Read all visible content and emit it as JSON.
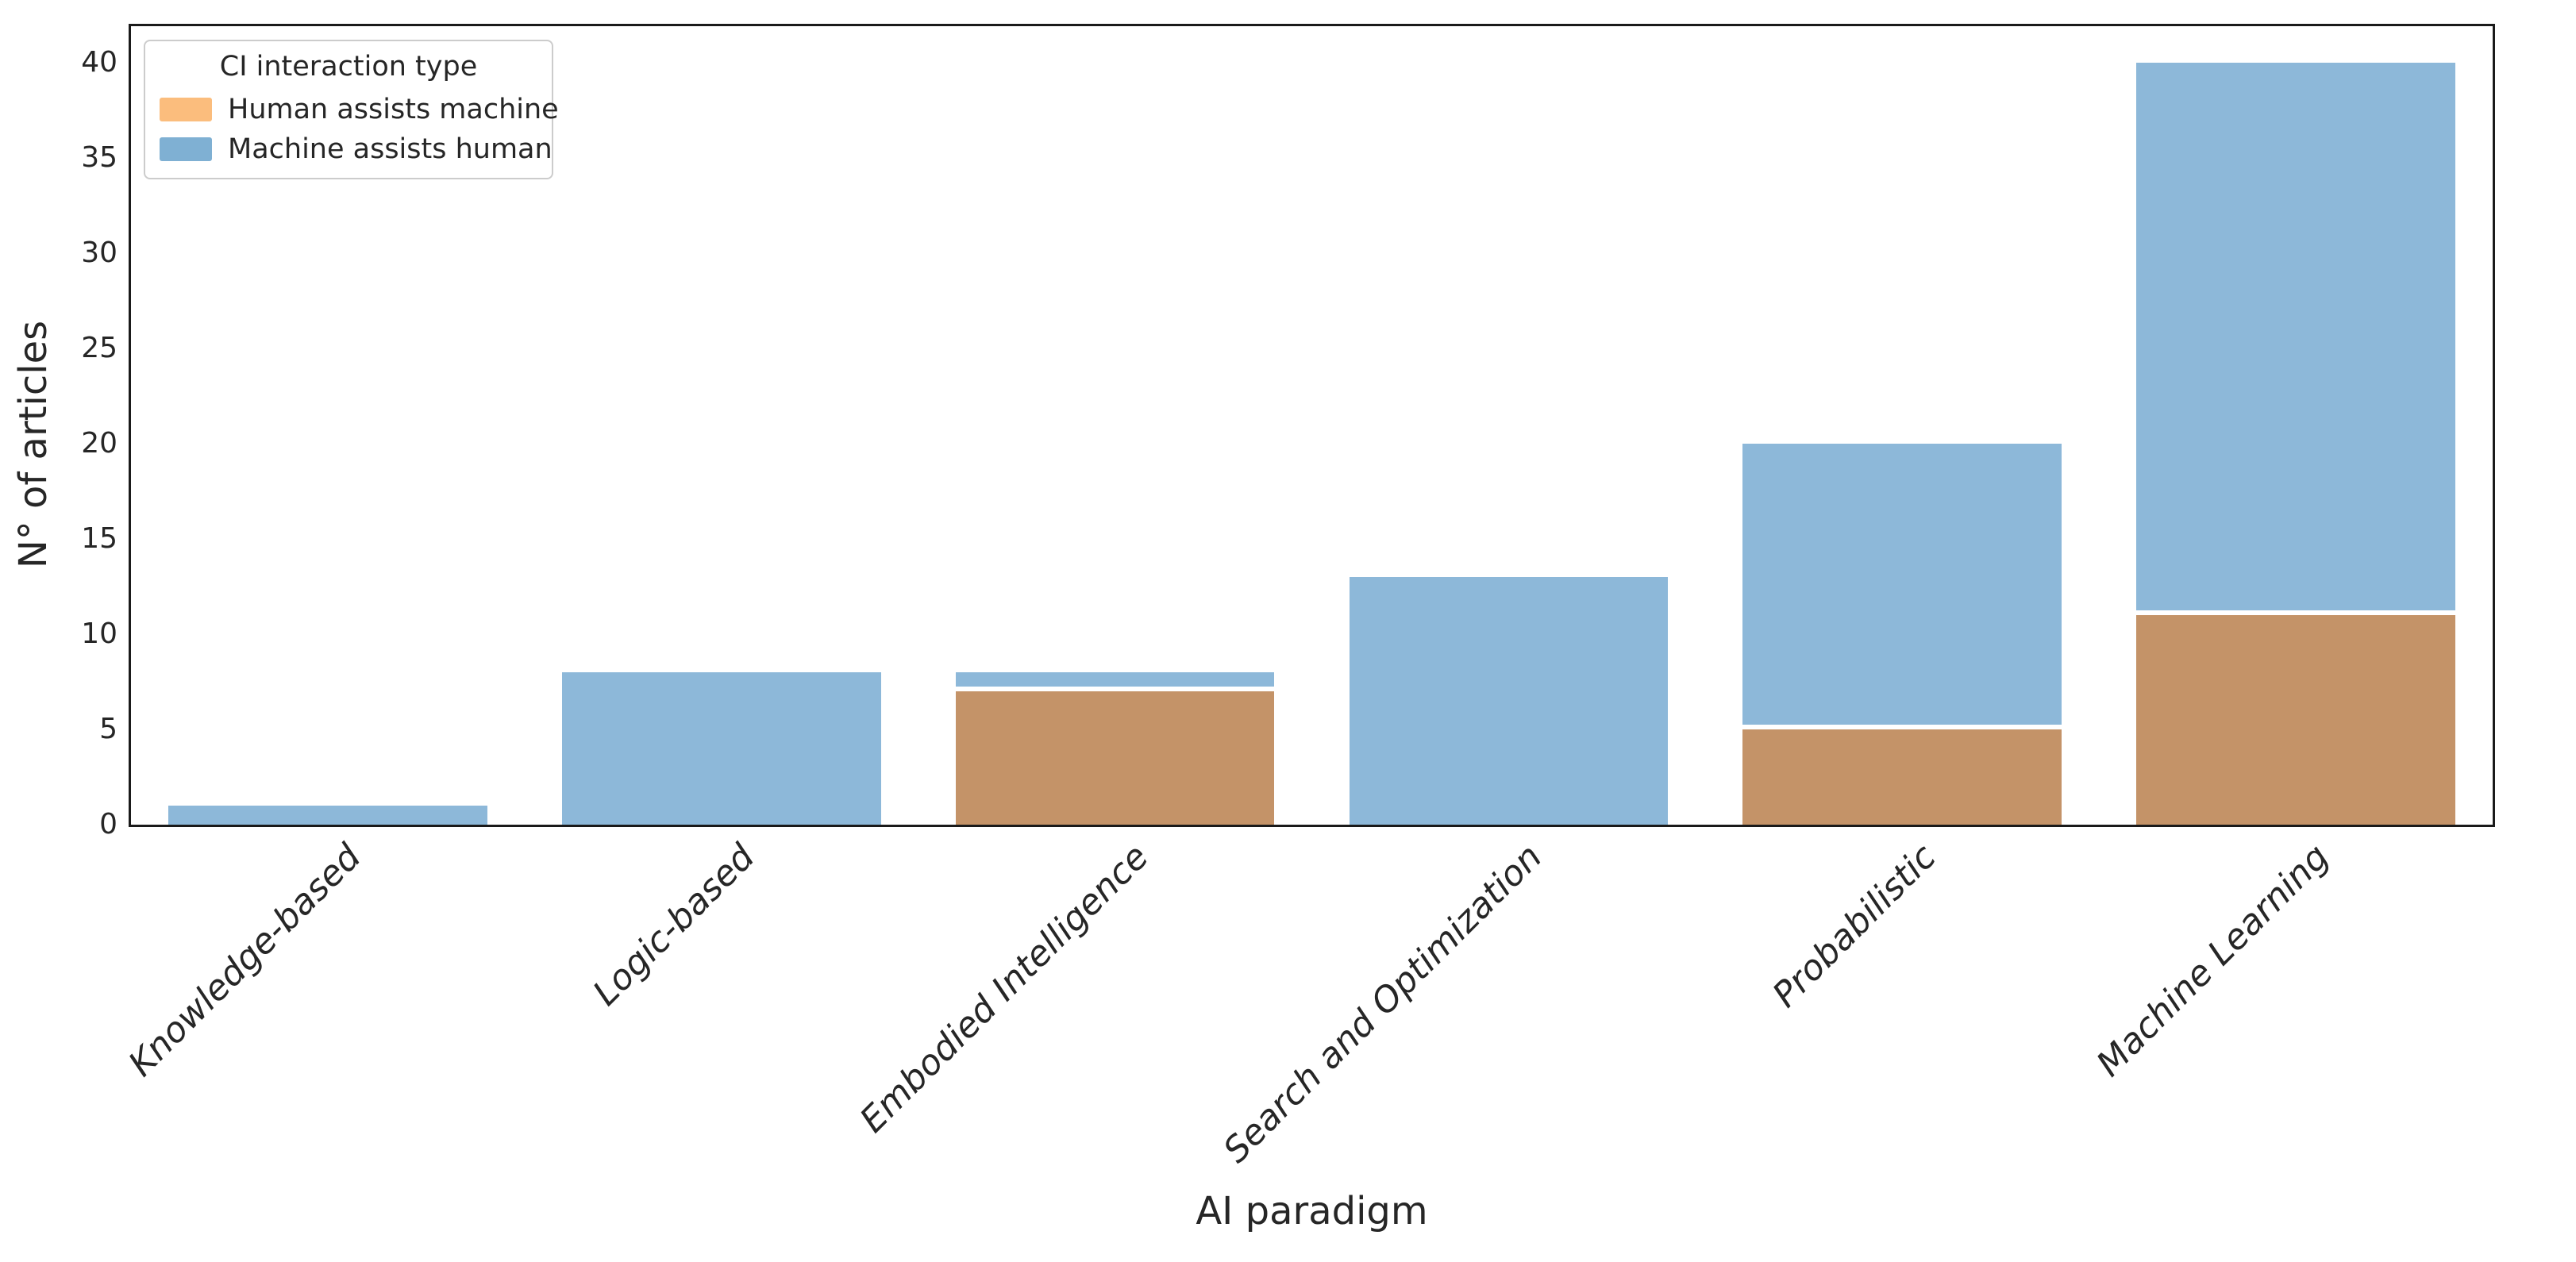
{
  "chart_data": {
    "type": "bar",
    "stacked": true,
    "title": "",
    "xlabel": "AI paradigm",
    "ylabel": "N° of articles",
    "categories": [
      "Knowledge-based",
      "Logic-based",
      "Embodied Intelligence",
      "Search and Optimization",
      "Probabilistic",
      "Machine Learning"
    ],
    "series": [
      {
        "name": "Human assists machine",
        "bar_color": "#c49368",
        "legend_color": "#fbbd7d",
        "values": [
          0,
          0,
          7,
          0,
          5,
          11
        ]
      },
      {
        "name": "Machine assists human",
        "bar_color": "#8db8d9",
        "legend_color": "#7fb0d3",
        "values": [
          1,
          8,
          1,
          13,
          15,
          29
        ]
      }
    ],
    "totals": [
      1,
      8,
      8,
      13,
      20,
      40
    ],
    "yticks": [
      0,
      5,
      10,
      15,
      20,
      25,
      30,
      35,
      40
    ],
    "ylim": [
      0,
      42
    ],
    "grid": false,
    "legend_title": "CI interaction type",
    "legend_position": "upper-left"
  },
  "colors": {
    "text": "#262626",
    "spine": "#1a1a1a",
    "segment_separator": "#ffffff",
    "background": "#ffffff"
  }
}
